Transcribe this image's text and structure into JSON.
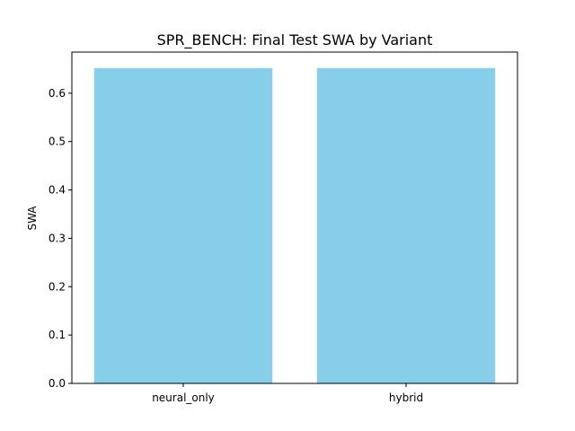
{
  "chart_data": {
    "type": "bar",
    "title": "SPR_BENCH: Final Test SWA by Variant",
    "xlabel": "",
    "ylabel": "SWA",
    "categories": [
      "neural_only",
      "hybrid"
    ],
    "values": [
      0.652,
      0.652
    ],
    "ylim": [
      0,
      0.685
    ],
    "yticks": [
      0.0,
      0.1,
      0.2,
      0.3,
      0.4,
      0.5,
      0.6
    ],
    "ytick_labels": [
      "0.0",
      "0.1",
      "0.2",
      "0.3",
      "0.4",
      "0.5",
      "0.6"
    ],
    "bar_color": "#87ceeb",
    "grid": false,
    "legend": "none"
  }
}
